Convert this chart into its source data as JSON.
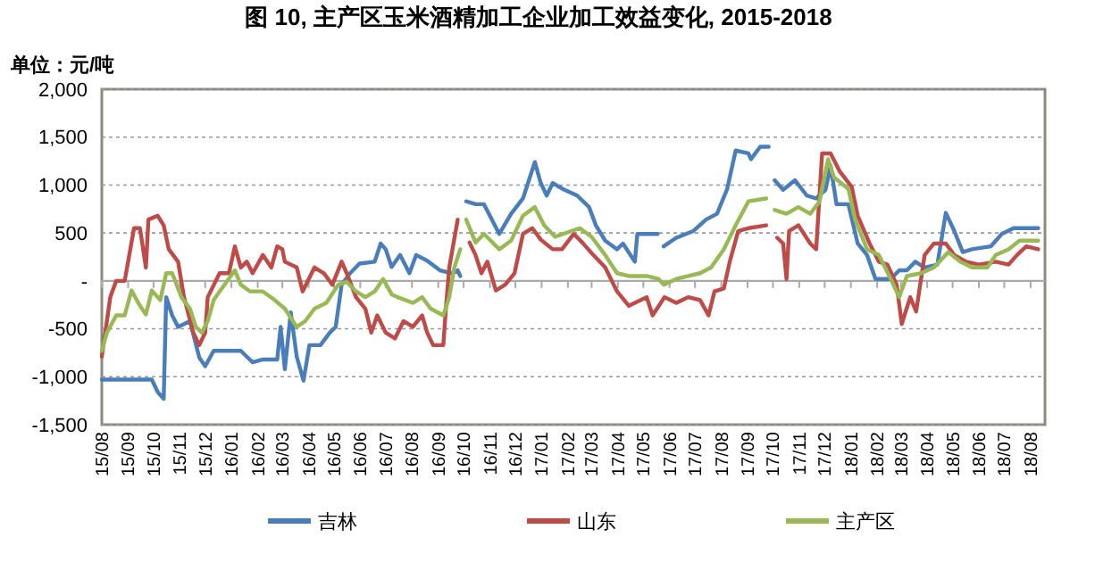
{
  "chart_data": {
    "type": "line",
    "title": "图 10, 主产区玉米酒精加工企业加工效益变化, 2015-2018",
    "ylabel": "单位：元/吨",
    "xlim": [
      "2015-08-01",
      "2018-08-18"
    ],
    "xticks": [
      {
        "value": "2015-08",
        "label": "15/08"
      },
      {
        "value": "2015-09",
        "label": "15/09"
      },
      {
        "value": "2015-10",
        "label": "15/10"
      },
      {
        "value": "2015-11",
        "label": "15/11"
      },
      {
        "value": "2015-12",
        "label": "15/12"
      },
      {
        "value": "2016-01",
        "label": "16/01"
      },
      {
        "value": "2016-02",
        "label": "16/02"
      },
      {
        "value": "2016-03",
        "label": "16/03"
      },
      {
        "value": "2016-04",
        "label": "16/04"
      },
      {
        "value": "2016-05",
        "label": "16/05"
      },
      {
        "value": "2016-06",
        "label": "16/06"
      },
      {
        "value": "2016-07",
        "label": "16/07"
      },
      {
        "value": "2016-08",
        "label": "16/08"
      },
      {
        "value": "2016-09",
        "label": "16/09"
      },
      {
        "value": "2016-10",
        "label": "16/10"
      },
      {
        "value": "2016-11",
        "label": "16/11"
      },
      {
        "value": "2016-12",
        "label": "16/12"
      },
      {
        "value": "2017-01",
        "label": "17/01"
      },
      {
        "value": "2017-02",
        "label": "17/02"
      },
      {
        "value": "2017-03",
        "label": "17/03"
      },
      {
        "value": "2017-04",
        "label": "17/04"
      },
      {
        "value": "2017-05",
        "label": "17/05"
      },
      {
        "value": "2017-06",
        "label": "17/06"
      },
      {
        "value": "2017-07",
        "label": "17/07"
      },
      {
        "value": "2017-08",
        "label": "17/08"
      },
      {
        "value": "2017-09",
        "label": "17/09"
      },
      {
        "value": "2017-10",
        "label": "17/10"
      },
      {
        "value": "2017-11",
        "label": "17/11"
      },
      {
        "value": "2017-12",
        "label": "17/12"
      },
      {
        "value": "2018-01",
        "label": "18/01"
      },
      {
        "value": "2018-02",
        "label": "18/02"
      },
      {
        "value": "2018-03",
        "label": "18/03"
      },
      {
        "value": "2018-04",
        "label": "18/04"
      },
      {
        "value": "2018-05",
        "label": "18/05"
      },
      {
        "value": "2018-06",
        "label": "18/06"
      },
      {
        "value": "2018-07",
        "label": "18/07"
      },
      {
        "value": "2018-08",
        "label": "18/08"
      }
    ],
    "ylim": [
      -1500,
      2000
    ],
    "yticks": [
      {
        "value": -1500,
        "label": "-1,500"
      },
      {
        "value": -1000,
        "label": "-1,000"
      },
      -500,
      {
        "value": 0,
        "label": "-"
      },
      500,
      {
        "value": 1000,
        "label": "1,000"
      },
      {
        "value": 1500,
        "label": "1,500"
      },
      {
        "value": 2000,
        "label": "2,000"
      }
    ],
    "grid": "y",
    "legend": "bottom",
    "marker": "none",
    "line_style": "solid",
    "series": [
      {
        "name": "吉林",
        "color": "#4a7ebb",
        "x": [
          "2015-08-01",
          "2015-09-29",
          "2015-10-06",
          "2015-10-13",
          "2015-10-16",
          "2015-10-23",
          "2015-10-30",
          "2015-11-13",
          "2015-11-24",
          "2015-12-01",
          "2015-12-11",
          "2016-01-12",
          "2016-01-19",
          "2016-01-26",
          "2016-02-07",
          "2016-02-24",
          "2016-02-28",
          "2016-03-04",
          "2016-03-11",
          "2016-03-18",
          "2016-03-26",
          "2016-04-02",
          "2016-04-15",
          "2016-04-26",
          "2016-05-03",
          "2016-05-10",
          "2016-05-20",
          "2016-05-31",
          "2016-06-18",
          "2016-06-25",
          "2016-07-01",
          "2016-07-08",
          "2016-07-18",
          "2016-07-29",
          "2016-08-06",
          "2016-08-19",
          "2016-09-03",
          "2016-09-17",
          "2016-09-24",
          "2016-09-27",
          "2016-10-03",
          "2016-10-04",
          "2016-10-15",
          "2016-10-25",
          "2016-11-12",
          "2016-11-26",
          "2016-12-10",
          "2016-12-24",
          "2016-12-31",
          "2017-01-07",
          "2017-01-14",
          "2017-01-28",
          "2017-02-12",
          "2017-02-26",
          "2017-03-06",
          "2017-03-17",
          "2017-03-31",
          "2017-04-07",
          "2017-04-21",
          "2017-04-24",
          "2017-05-18",
          "2017-05-21",
          "2017-05-25",
          "2017-06-09",
          "2017-06-29",
          "2017-07-14",
          "2017-07-27",
          "2017-08-08",
          "2017-08-18",
          "2017-09-02",
          "2017-09-05",
          "2017-09-16",
          "2017-09-26",
          "2017-09-29",
          "2017-10-03",
          "2017-10-13",
          "2017-10-27",
          "2017-11-10",
          "2017-11-21",
          "2017-12-02",
          "2017-12-08",
          "2017-12-15",
          "2017-12-29",
          "2018-01-09",
          "2018-01-20",
          "2018-01-30",
          "2018-02-17",
          "2018-02-27",
          "2018-03-08",
          "2018-03-18",
          "2018-03-29",
          "2018-04-13",
          "2018-04-23",
          "2018-05-03",
          "2018-05-13",
          "2018-05-24",
          "2018-06-15",
          "2018-06-28",
          "2018-07-12",
          "2018-08-10"
        ],
        "values": [
          -1030,
          -1030,
          -1160,
          -1230,
          -170,
          -360,
          -480,
          -420,
          -800,
          -890,
          -730,
          -730,
          -790,
          -850,
          -820,
          -820,
          -480,
          -920,
          -330,
          -790,
          -1040,
          -670,
          -670,
          -540,
          -480,
          -40,
          80,
          180,
          200,
          390,
          330,
          145,
          270,
          80,
          270,
          210,
          110,
          80,
          110,
          50,
          null,
          830,
          800,
          800,
          490,
          700,
          860,
          1240,
          1020,
          890,
          1020,
          950,
          890,
          770,
          580,
          420,
          330,
          390,
          200,
          490,
          490,
          null,
          360,
          450,
          520,
          640,
          700,
          960,
          1360,
          1330,
          1270,
          1400,
          1400,
          null,
          1050,
          950,
          1050,
          890,
          860,
          950,
          1200,
          800,
          800,
          390,
          270,
          20,
          20,
          110,
          110,
          200,
          140,
          170,
          710,
          520,
          300,
          330,
          360,
          490,
          550,
          550
        ]
      },
      {
        "name": "山东",
        "color": "#be4b48",
        "x": [
          "2015-08-01",
          "2015-08-11",
          "2015-08-18",
          "2015-08-28",
          "2015-09-08",
          "2015-09-15",
          "2015-09-22",
          "2015-09-25",
          "2015-10-06",
          "2015-10-13",
          "2015-10-19",
          "2015-10-30",
          "2015-11-06",
          "2015-11-17",
          "2015-11-24",
          "2015-12-01",
          "2015-12-04",
          "2015-12-18",
          "2015-12-29",
          "2016-01-05",
          "2016-01-12",
          "2016-01-19",
          "2016-01-26",
          "2016-02-07",
          "2016-02-17",
          "2016-02-24",
          "2016-03-01",
          "2016-03-04",
          "2016-03-18",
          "2016-03-25",
          "2016-04-08",
          "2016-04-19",
          "2016-04-29",
          "2016-05-10",
          "2016-05-16",
          "2016-05-27",
          "2016-06-07",
          "2016-06-14",
          "2016-06-21",
          "2016-07-01",
          "2016-07-12",
          "2016-07-22",
          "2016-08-02",
          "2016-08-13",
          "2016-08-19",
          "2016-08-26",
          "2016-09-07",
          "2016-09-10",
          "2016-09-14",
          "2016-09-24",
          "2016-10-02",
          "2016-10-08",
          "2016-10-15",
          "2016-10-22",
          "2016-10-29",
          "2016-11-08",
          "2016-11-19",
          "2016-11-30",
          "2016-12-10",
          "2016-12-21",
          "2016-12-31",
          "2017-01-14",
          "2017-01-25",
          "2017-02-08",
          "2017-02-18",
          "2017-03-03",
          "2017-03-17",
          "2017-03-31",
          "2017-04-14",
          "2017-05-05",
          "2017-05-12",
          "2017-05-26",
          "2017-06-09",
          "2017-06-23",
          "2017-07-07",
          "2017-07-17",
          "2017-07-24",
          "2017-08-04",
          "2017-08-11",
          "2017-08-21",
          "2017-09-02",
          "2017-09-23",
          "2017-09-28",
          "2017-10-06",
          "2017-10-13",
          "2017-10-17",
          "2017-10-20",
          "2017-10-31",
          "2017-11-14",
          "2017-11-21",
          "2017-11-28",
          "2017-12-08",
          "2017-12-19",
          "2018-01-02",
          "2018-01-09",
          "2018-01-23",
          "2018-02-03",
          "2018-02-13",
          "2018-02-24",
          "2018-03-02",
          "2018-03-12",
          "2018-03-19",
          "2018-03-29",
          "2018-04-09",
          "2018-04-23",
          "2018-05-03",
          "2018-05-17",
          "2018-06-01",
          "2018-06-21",
          "2018-07-06",
          "2018-07-16",
          "2018-07-27",
          "2018-08-10"
        ],
        "values": [
          -790,
          -170,
          0,
          0,
          550,
          550,
          140,
          640,
          680,
          580,
          330,
          200,
          -170,
          -540,
          -670,
          -540,
          -170,
          80,
          80,
          360,
          140,
          200,
          80,
          270,
          140,
          360,
          330,
          200,
          140,
          -110,
          140,
          80,
          -40,
          200,
          80,
          -170,
          -290,
          -540,
          -360,
          -540,
          -600,
          -420,
          -480,
          -360,
          -540,
          -670,
          -670,
          -290,
          140,
          640,
          null,
          400,
          270,
          80,
          200,
          -100,
          -40,
          80,
          490,
          550,
          430,
          330,
          330,
          490,
          400,
          270,
          140,
          -110,
          -260,
          -170,
          -360,
          -170,
          -230,
          -170,
          -200,
          -360,
          -110,
          -80,
          200,
          520,
          550,
          580,
          null,
          450,
          390,
          20,
          520,
          580,
          390,
          330,
          1330,
          1330,
          1140,
          980,
          680,
          390,
          200,
          170,
          -40,
          -450,
          -170,
          -320,
          270,
          390,
          390,
          270,
          200,
          170,
          200,
          170,
          270,
          360,
          330
        ]
      },
      {
        "name": "主产区",
        "color": "#98b954",
        "x": [
          "2015-08-01",
          "2015-08-07",
          "2015-08-18",
          "2015-08-28",
          "2015-09-05",
          "2015-09-15",
          "2015-09-22",
          "2015-09-29",
          "2015-10-09",
          "2015-10-16",
          "2015-10-23",
          "2015-11-03",
          "2015-11-13",
          "2015-11-20",
          "2015-11-27",
          "2015-12-04",
          "2015-12-11",
          "2015-12-18",
          "2016-01-05",
          "2016-01-12",
          "2016-01-23",
          "2016-02-07",
          "2016-02-21",
          "2016-03-04",
          "2016-03-18",
          "2016-03-28",
          "2016-04-08",
          "2016-04-22",
          "2016-05-06",
          "2016-05-16",
          "2016-05-27",
          "2016-06-07",
          "2016-06-18",
          "2016-06-28",
          "2016-07-08",
          "2016-07-15",
          "2016-08-02",
          "2016-08-13",
          "2016-08-23",
          "2016-09-07",
          "2016-09-14",
          "2016-09-20",
          "2016-09-27",
          "2016-10-02",
          "2016-10-04",
          "2016-10-15",
          "2016-10-25",
          "2016-11-12",
          "2016-11-26",
          "2016-12-10",
          "2016-12-24",
          "2017-01-04",
          "2017-01-17",
          "2017-02-05",
          "2017-02-15",
          "2017-03-01",
          "2017-03-17",
          "2017-03-31",
          "2017-04-14",
          "2017-05-05",
          "2017-05-19",
          "2017-05-25",
          "2017-06-09",
          "2017-06-23",
          "2017-07-07",
          "2017-07-20",
          "2017-08-04",
          "2017-08-18",
          "2017-09-02",
          "2017-09-23",
          "2017-09-28",
          "2017-10-03",
          "2017-10-17",
          "2017-10-31",
          "2017-11-14",
          "2017-11-25",
          "2017-12-05",
          "2017-12-12",
          "2017-12-29",
          "2018-01-06",
          "2018-01-20",
          "2018-02-03",
          "2018-02-17",
          "2018-02-27",
          "2018-03-08",
          "2018-03-25",
          "2018-04-09",
          "2018-04-26",
          "2018-05-10",
          "2018-05-24",
          "2018-06-11",
          "2018-06-21",
          "2018-07-06",
          "2018-07-19",
          "2018-08-10"
        ],
        "values": [
          -730,
          -540,
          -360,
          -360,
          -100,
          -260,
          -350,
          -100,
          -200,
          80,
          80,
          -170,
          -290,
          -480,
          -540,
          -420,
          -200,
          -110,
          110,
          -40,
          -110,
          -110,
          -200,
          -290,
          -480,
          -420,
          -290,
          -230,
          -40,
          -10,
          -110,
          -170,
          -110,
          20,
          -140,
          -170,
          -230,
          -170,
          -290,
          -360,
          -170,
          140,
          330,
          null,
          640,
          400,
          490,
          330,
          420,
          680,
          770,
          580,
          460,
          520,
          550,
          460,
          270,
          80,
          50,
          50,
          20,
          -40,
          20,
          50,
          80,
          140,
          330,
          580,
          830,
          860,
          null,
          740,
          700,
          770,
          700,
          830,
          1270,
          1080,
          960,
          640,
          330,
          270,
          20,
          -170,
          50,
          80,
          140,
          300,
          200,
          140,
          140,
          270,
          330,
          420,
          420
        ]
      }
    ]
  }
}
